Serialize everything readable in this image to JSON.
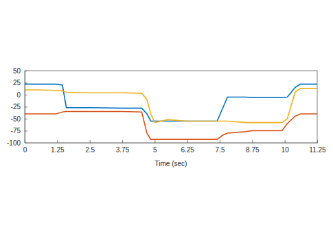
{
  "chart_data": {
    "type": "line",
    "x_label": "Time (sec)",
    "x": [
      0,
      0.5,
      1.2,
      1.45,
      1.6,
      2.5,
      3.75,
      4.5,
      4.7,
      4.85,
      5.0,
      5.5,
      6.25,
      7.4,
      7.6,
      7.8,
      8.5,
      8.75,
      9.7,
      9.9,
      10.1,
      10.4,
      10.6,
      11.25
    ],
    "series": [
      {
        "color": "#0072bd",
        "values": [
          22,
          22,
          22,
          20,
          -27,
          -27,
          -28,
          -28,
          -40,
          -55,
          -55,
          -55,
          -55,
          -55,
          -30,
          -5,
          -5,
          -6,
          -6,
          -6,
          -5,
          15,
          22,
          22
        ]
      },
      {
        "color": "#edb120",
        "values": [
          10,
          10,
          9,
          8,
          5,
          4,
          4,
          3,
          -10,
          -40,
          -58,
          -52,
          -55,
          -55,
          -55,
          -55,
          -58,
          -58,
          -58,
          -58,
          -50,
          5,
          13,
          13
        ]
      },
      {
        "color": "#d95319",
        "values": [
          -40,
          -40,
          -40,
          -36,
          -35,
          -35,
          -35,
          -36,
          -80,
          -93,
          -93,
          -93,
          -93,
          -93,
          -85,
          -80,
          -77,
          -75,
          -75,
          -75,
          -60,
          -45,
          -40,
          -40
        ]
      }
    ],
    "xlim": [
      0,
      11.25
    ],
    "xticks": [
      0,
      1.25,
      2.5,
      3.75,
      5,
      6.25,
      7.5,
      8.75,
      10,
      11.25
    ],
    "ylim": [
      -100,
      50
    ],
    "yticks": [
      -100,
      -75,
      -50,
      -25,
      0,
      25,
      50
    ],
    "grid": false
  }
}
